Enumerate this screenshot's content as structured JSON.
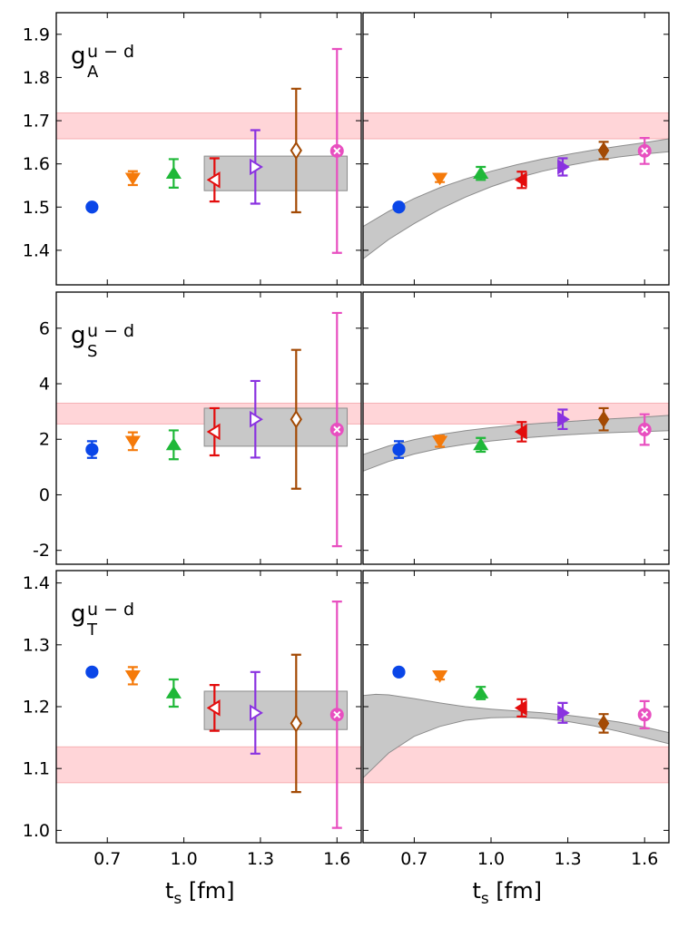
{
  "chart_data": {
    "type": "scatter",
    "x_axis": {
      "label_main": "t",
      "label_sub": "s",
      "label_unit": " [fm]",
      "range": [
        0.5,
        1.695
      ],
      "ticks": [
        0.7,
        1.0,
        1.3,
        1.6
      ],
      "tick_labels": [
        "0.7",
        "1.0",
        "1.3",
        "1.6"
      ]
    },
    "series": [
      {
        "name": "ts=0.64",
        "marker": "circle",
        "color": "#0a46e8",
        "x": 0.64
      },
      {
        "name": "ts=0.80",
        "marker": "triangle-down",
        "color": "#f57a0a",
        "x": 0.8
      },
      {
        "name": "ts=0.96",
        "marker": "triangle-up",
        "color": "#1fb838",
        "x": 0.96
      },
      {
        "name": "ts=1.12",
        "marker": "triangle-left",
        "color": "#e30c0c",
        "x": 1.12
      },
      {
        "name": "ts=1.28",
        "marker": "triangle-right",
        "color": "#8a32e0",
        "x": 1.28
      },
      {
        "name": "ts=1.44",
        "marker": "diamond",
        "color": "#a34a04",
        "x": 1.44
      },
      {
        "name": "ts=1.60",
        "marker": "x-circle",
        "color": "#e84fc0",
        "x": 1.6
      }
    ],
    "band_color": "#ffb3b8",
    "fit_color": "#c8c8c8",
    "panels": [
      {
        "label_main": "g",
        "label_sup": "u − d",
        "label_sub": "A",
        "ylim": [
          1.32,
          1.95
        ],
        "yticks": [
          1.4,
          1.5,
          1.6,
          1.7,
          1.8,
          1.9
        ],
        "ytick_labels": [
          "1.4",
          "1.5",
          "1.6",
          "1.7",
          "1.8",
          "1.9"
        ],
        "band": [
          1.658,
          1.718
        ],
        "left": {
          "points": [
            {
              "y": 1.5,
              "err": 0.006
            },
            {
              "y": 1.567,
              "err": 0.016
            },
            {
              "y": 1.578,
              "err": 0.033
            },
            {
              "y": 1.563,
              "err": 0.05
            },
            {
              "y": 1.593,
              "err": 0.085
            },
            {
              "y": 1.631,
              "err": 0.143
            },
            {
              "y": 1.63,
              "err": 0.236
            }
          ],
          "plateau": {
            "x0": 1.08,
            "x1": 1.64,
            "lo": 1.538,
            "hi": 1.618
          }
        },
        "right": {
          "points": [
            {
              "y": 1.5,
              "err": 0.006
            },
            {
              "y": 1.567,
              "err": 0.009
            },
            {
              "y": 1.578,
              "err": 0.015
            },
            {
              "y": 1.563,
              "err": 0.019
            },
            {
              "y": 1.593,
              "err": 0.02
            },
            {
              "y": 1.631,
              "err": 0.02
            },
            {
              "y": 1.63,
              "err": 0.03
            }
          ],
          "fit_x": [
            0.5,
            0.6,
            0.7,
            0.8,
            0.9,
            1.0,
            1.1,
            1.2,
            1.3,
            1.4,
            1.5,
            1.6,
            1.695
          ],
          "fit_lo": [
            1.38,
            1.425,
            1.462,
            1.495,
            1.523,
            1.547,
            1.567,
            1.583,
            1.596,
            1.607,
            1.616,
            1.623,
            1.628
          ],
          "fit_hi": [
            1.455,
            1.49,
            1.52,
            1.545,
            1.565,
            1.583,
            1.598,
            1.611,
            1.622,
            1.632,
            1.641,
            1.649,
            1.658
          ]
        }
      },
      {
        "label_main": "g",
        "label_sup": "u − d",
        "label_sub": "S",
        "ylim": [
          -2.5,
          7.3
        ],
        "yticks": [
          -2,
          0,
          2,
          4,
          6
        ],
        "ytick_labels": [
          "-2",
          "0",
          "2",
          "4",
          "6"
        ],
        "band": [
          2.55,
          3.3
        ],
        "left": {
          "points": [
            {
              "y": 1.63,
              "err": 0.3
            },
            {
              "y": 1.93,
              "err": 0.32
            },
            {
              "y": 1.8,
              "err": 0.52
            },
            {
              "y": 2.27,
              "err": 0.85
            },
            {
              "y": 2.72,
              "err": 1.38
            },
            {
              "y": 2.72,
              "err": 2.5
            },
            {
              "y": 2.35,
              "err": 4.2
            }
          ],
          "plateau": {
            "x0": 1.08,
            "x1": 1.64,
            "lo": 1.75,
            "hi": 3.12
          }
        },
        "right": {
          "points": [
            {
              "y": 1.63,
              "err": 0.3
            },
            {
              "y": 1.93,
              "err": 0.2
            },
            {
              "y": 1.8,
              "err": 0.25
            },
            {
              "y": 2.27,
              "err": 0.35
            },
            {
              "y": 2.72,
              "err": 0.35
            },
            {
              "y": 2.72,
              "err": 0.4
            },
            {
              "y": 2.35,
              "err": 0.55
            }
          ],
          "fit_x": [
            0.5,
            0.6,
            0.7,
            0.8,
            0.9,
            1.0,
            1.1,
            1.2,
            1.3,
            1.4,
            1.5,
            1.6,
            1.695
          ],
          "fit_lo": [
            0.85,
            1.2,
            1.47,
            1.67,
            1.82,
            1.94,
            2.03,
            2.1,
            2.16,
            2.21,
            2.25,
            2.28,
            2.31
          ],
          "fit_hi": [
            1.45,
            1.76,
            1.99,
            2.17,
            2.31,
            2.42,
            2.51,
            2.58,
            2.64,
            2.7,
            2.75,
            2.8,
            2.86
          ]
        }
      },
      {
        "label_main": "g",
        "label_sup": "u − d",
        "label_sub": "T",
        "ylim": [
          0.98,
          1.42
        ],
        "yticks": [
          1.0,
          1.1,
          1.2,
          1.3,
          1.4
        ],
        "ytick_labels": [
          "1.0",
          "1.1",
          "1.2",
          "1.3",
          "1.4"
        ],
        "band": [
          1.077,
          1.135
        ],
        "left": {
          "points": [
            {
              "y": 1.256,
              "err": 0.005
            },
            {
              "y": 1.25,
              "err": 0.014
            },
            {
              "y": 1.222,
              "err": 0.022
            },
            {
              "y": 1.198,
              "err": 0.037
            },
            {
              "y": 1.19,
              "err": 0.066
            },
            {
              "y": 1.173,
              "err": 0.111
            },
            {
              "y": 1.187,
              "err": 0.183
            }
          ],
          "plateau": {
            "x0": 1.08,
            "x1": 1.64,
            "lo": 1.163,
            "hi": 1.225
          }
        },
        "right": {
          "points": [
            {
              "y": 1.256,
              "err": 0.005
            },
            {
              "y": 1.25,
              "err": 0.006
            },
            {
              "y": 1.222,
              "err": 0.01
            },
            {
              "y": 1.198,
              "err": 0.014
            },
            {
              "y": 1.19,
              "err": 0.016
            },
            {
              "y": 1.173,
              "err": 0.015
            },
            {
              "y": 1.187,
              "err": 0.022
            }
          ],
          "fit_x": [
            0.5,
            0.55,
            0.6,
            0.7,
            0.8,
            0.9,
            1.0,
            1.1,
            1.2,
            1.3,
            1.4,
            1.5,
            1.6,
            1.695
          ],
          "fit_lo": [
            1.085,
            1.105,
            1.125,
            1.152,
            1.168,
            1.178,
            1.182,
            1.183,
            1.181,
            1.176,
            1.169,
            1.16,
            1.15,
            1.14
          ],
          "fit_hi": [
            1.218,
            1.22,
            1.219,
            1.213,
            1.206,
            1.2,
            1.196,
            1.193,
            1.19,
            1.186,
            1.181,
            1.175,
            1.167,
            1.158
          ]
        }
      }
    ]
  }
}
